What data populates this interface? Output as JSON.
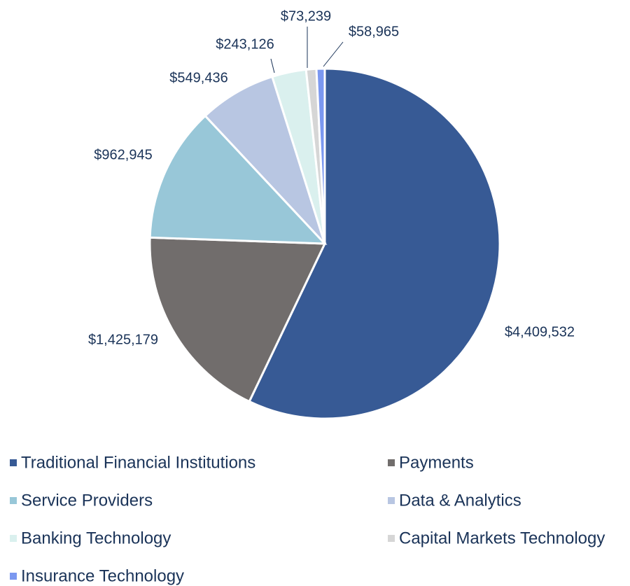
{
  "chart_data": {
    "type": "pie",
    "categories": [
      "Traditional Financial Institutions",
      "Payments",
      "Service Providers",
      "Data & Analytics",
      "Banking Technology",
      "Capital Markets Technology",
      "Insurance Technology"
    ],
    "values": [
      4409532,
      1425179,
      962945,
      549436,
      243126,
      73239,
      58965
    ],
    "value_labels": [
      "$4,409,532",
      "$1,425,179",
      "$962,945",
      "$549,436",
      "$243,126",
      "$73,239",
      "$58,965"
    ],
    "colors": [
      "#375a95",
      "#716d6c",
      "#98c7d8",
      "#b8c6e2",
      "#daf0ee",
      "#d6d6d6",
      "#7b98f0"
    ],
    "legend": "bottom"
  }
}
